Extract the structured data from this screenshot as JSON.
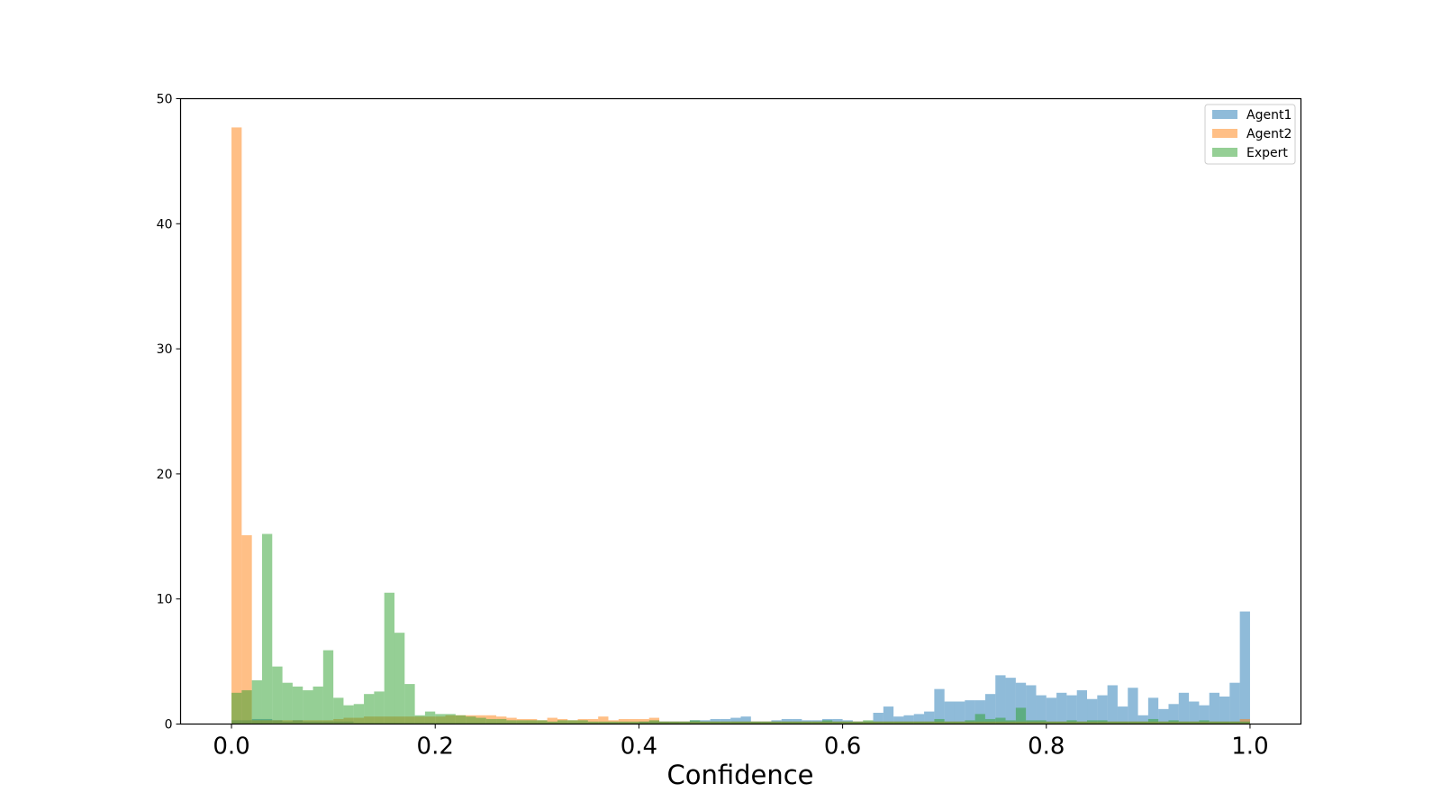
{
  "chart_data": {
    "type": "histogram",
    "xlabel": "Confidence",
    "ylabel": "",
    "title": "",
    "xlim": [
      -0.05,
      1.05
    ],
    "ylim": [
      0,
      50
    ],
    "xticks": [
      "0.0",
      "0.2",
      "0.4",
      "0.6",
      "0.8",
      "1.0"
    ],
    "yticks": [
      "0",
      "10",
      "20",
      "30",
      "40",
      "50"
    ],
    "legend": {
      "placement": "top-right",
      "entries": [
        "Agent1",
        "Agent2",
        "Expert"
      ]
    },
    "bin_width": 0.01,
    "bin_start": 0.0,
    "series": [
      {
        "name": "Agent1",
        "color": "#1f77b4",
        "alpha": 0.5,
        "values": [
          0.3,
          0.3,
          0.4,
          0.4,
          0.3,
          0.2,
          0.3,
          0.2,
          0.2,
          0.2,
          0.2,
          0.2,
          0.1,
          0.1,
          0.1,
          0.1,
          0.1,
          0.1,
          0.1,
          0.1,
          0.1,
          0.1,
          0.1,
          0.1,
          0.1,
          0.1,
          0.1,
          0.1,
          0.1,
          0.1,
          0.1,
          0.1,
          0.1,
          0.1,
          0.1,
          0.1,
          0.1,
          0.1,
          0.1,
          0.1,
          0.2,
          0.2,
          0.2,
          0.2,
          0.2,
          0.3,
          0.3,
          0.4,
          0.4,
          0.5,
          0.6,
          0.2,
          0.2,
          0.3,
          0.4,
          0.4,
          0.3,
          0.3,
          0.4,
          0.4,
          0.3,
          0.2,
          0.2,
          0.9,
          1.4,
          0.6,
          0.7,
          0.8,
          1.0,
          2.8,
          1.8,
          1.8,
          1.9,
          1.9,
          2.4,
          3.9,
          3.7,
          3.3,
          3.1,
          2.3,
          2.1,
          2.5,
          2.3,
          2.7,
          2.0,
          2.3,
          3.1,
          1.4,
          2.9,
          0.7,
          2.1,
          1.2,
          1.6,
          2.5,
          1.8,
          1.5,
          2.5,
          2.2,
          3.3,
          9.0
        ]
      },
      {
        "name": "Agent2",
        "color": "#ff7f0e",
        "alpha": 0.5,
        "values": [
          47.7,
          15.1,
          0.3,
          0.3,
          0.3,
          0.3,
          0.3,
          0.3,
          0.3,
          0.3,
          0.4,
          0.5,
          0.5,
          0.6,
          0.6,
          0.6,
          0.6,
          0.6,
          0.6,
          0.6,
          0.6,
          0.7,
          0.7,
          0.7,
          0.7,
          0.7,
          0.6,
          0.5,
          0.4,
          0.4,
          0.3,
          0.5,
          0.4,
          0.3,
          0.4,
          0.4,
          0.6,
          0.3,
          0.4,
          0.4,
          0.4,
          0.5,
          0.2,
          0.2,
          0.2,
          0.2,
          0.2,
          0.2,
          0.2,
          0.2,
          0.2,
          0.2,
          0.2,
          0.2,
          0.2,
          0.2,
          0.2,
          0.2,
          0.2,
          0.2,
          0.2,
          0.2,
          0.2,
          0.2,
          0.2,
          0.2,
          0.2,
          0.2,
          0.2,
          0.2,
          0.2,
          0.2,
          0.2,
          0.2,
          0.2,
          0.2,
          0.2,
          0.2,
          0.2,
          0.2,
          0.2,
          0.2,
          0.2,
          0.2,
          0.2,
          0.2,
          0.2,
          0.2,
          0.2,
          0.2,
          0.2,
          0.2,
          0.2,
          0.2,
          0.2,
          0.2,
          0.2,
          0.2,
          0.2,
          0.4
        ]
      },
      {
        "name": "Expert",
        "color": "#2ca02c",
        "alpha": 0.5,
        "values": [
          2.5,
          2.7,
          3.5,
          15.2,
          4.6,
          3.3,
          3.0,
          2.7,
          3.0,
          5.9,
          2.1,
          1.5,
          1.6,
          2.4,
          2.6,
          10.5,
          7.3,
          3.2,
          0.7,
          1.0,
          0.8,
          0.8,
          0.7,
          0.6,
          0.5,
          0.4,
          0.4,
          0.3,
          0.3,
          0.3,
          0.3,
          0.2,
          0.3,
          0.3,
          0.3,
          0.2,
          0.2,
          0.2,
          0.2,
          0.2,
          0.2,
          0.3,
          0.2,
          0.2,
          0.2,
          0.3,
          0.2,
          0.2,
          0.2,
          0.2,
          0.2,
          0.2,
          0.2,
          0.2,
          0.2,
          0.2,
          0.2,
          0.2,
          0.3,
          0.2,
          0.2,
          0.2,
          0.3,
          0.2,
          0.2,
          0.2,
          0.2,
          0.2,
          0.2,
          0.4,
          0.2,
          0.2,
          0.3,
          0.8,
          0.4,
          0.5,
          0.3,
          1.3,
          0.3,
          0.3,
          0.2,
          0.2,
          0.3,
          0.2,
          0.3,
          0.3,
          0.2,
          0.2,
          0.2,
          0.2,
          0.4,
          0.2,
          0.3,
          0.2,
          0.2,
          0.3,
          0.2,
          0.2,
          0.2,
          0.2
        ]
      }
    ]
  }
}
